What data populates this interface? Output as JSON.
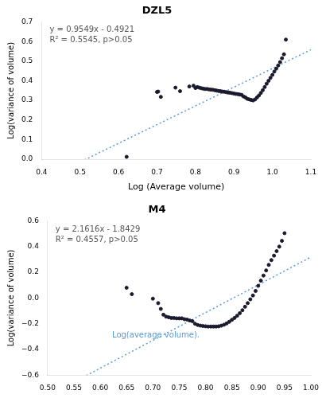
{
  "chart_data": [
    {
      "type": "scatter",
      "title": "DZL5",
      "xlabel": "Log (Average volume)",
      "ylabel": "Log(variance of volume)",
      "xlim": [
        0.4,
        1.1
      ],
      "ylim": [
        0.0,
        0.7
      ],
      "xticks": [
        0.4,
        0.5,
        0.6,
        0.7,
        0.8,
        0.9,
        {
          "value": 1.0,
          "label": "1.0"
        },
        1.1
      ],
      "yticks": [
        {
          "value": 0.0,
          "label": "0.0"
        },
        0.1,
        0.2,
        0.3,
        0.4,
        0.5,
        0.6,
        0.7
      ],
      "grid": false,
      "series": [
        {
          "type": "scatter",
          "marker": "circle",
          "color": "#1a1a2e",
          "x": [
            0.621,
            0.7,
            0.703,
            0.71,
            0.748,
            0.76,
            0.784,
            0.795,
            0.8,
            0.805,
            0.81,
            0.815,
            0.82,
            0.825,
            0.83,
            0.835,
            0.84,
            0.845,
            0.85,
            0.855,
            0.86,
            0.865,
            0.87,
            0.875,
            0.88,
            0.885,
            0.89,
            0.895,
            0.9,
            0.905,
            0.91,
            0.915,
            0.92,
            0.925,
            0.93,
            0.935,
            0.94,
            0.945,
            0.95,
            0.955,
            0.96,
            0.965,
            0.97,
            0.975,
            0.98,
            0.985,
            0.99,
            0.995,
            1.0,
            1.005,
            1.01,
            1.015,
            1.02,
            1.025,
            1.03,
            1.035
          ],
          "values": [
            0.012,
            0.343,
            0.345,
            0.318,
            0.365,
            0.347,
            0.371,
            0.375,
            0.363,
            0.368,
            0.365,
            0.362,
            0.36,
            0.358,
            0.358,
            0.356,
            0.355,
            0.354,
            0.352,
            0.35,
            0.348,
            0.347,
            0.345,
            0.344,
            0.342,
            0.34,
            0.339,
            0.337,
            0.335,
            0.333,
            0.332,
            0.33,
            0.328,
            0.32,
            0.315,
            0.308,
            0.305,
            0.302,
            0.3,
            0.305,
            0.315,
            0.325,
            0.338,
            0.352,
            0.368,
            0.385,
            0.4,
            0.415,
            0.43,
            0.447,
            0.462,
            0.478,
            0.495,
            0.515,
            0.535,
            0.61
          ]
        },
        {
          "type": "line",
          "line_style": "dotted",
          "color": "#5b9bd5",
          "slope": 0.9549,
          "intercept": -0.4921
        }
      ],
      "annotations": [
        {
          "text": [
            "y = 0.9549x - 0.4921",
            "R² = 0.5545, p>0.05"
          ],
          "color": "#555555"
        }
      ]
    },
    {
      "type": "scatter",
      "title": "M4",
      "ylabel": "Log(variance of volume)",
      "xlim": [
        0.5,
        1.0
      ],
      "ylim": [
        -0.6,
        0.6
      ],
      "xticks": [
        {
          "value": 0.5,
          "label": "0.50"
        },
        0.55,
        {
          "value": 0.6,
          "label": "0.60"
        },
        0.65,
        {
          "value": 0.7,
          "label": "0.70"
        },
        0.75,
        {
          "value": 0.8,
          "label": "0.80"
        },
        0.85,
        {
          "value": 0.9,
          "label": "0.90"
        },
        0.95,
        {
          "value": 1.0,
          "label": "1.00"
        }
      ],
      "yticks": [
        {
          "value": -0.6,
          "label": "−0.6"
        },
        {
          "value": -0.4,
          "label": "−0.4"
        },
        {
          "value": -0.2,
          "label": "−0.2"
        },
        {
          "value": 0.0,
          "label": "0.0"
        },
        0.2,
        0.4,
        0.6
      ],
      "grid": false,
      "series": [
        {
          "type": "scatter",
          "marker": "circle",
          "color": "#1a1a2e",
          "x": [
            0.65,
            0.66,
            0.7,
            0.71,
            0.715,
            0.72,
            0.725,
            0.73,
            0.735,
            0.74,
            0.745,
            0.75,
            0.755,
            0.76,
            0.765,
            0.77,
            0.775,
            0.78,
            0.785,
            0.79,
            0.795,
            0.8,
            0.805,
            0.81,
            0.815,
            0.82,
            0.825,
            0.83,
            0.835,
            0.84,
            0.845,
            0.85,
            0.855,
            0.86,
            0.865,
            0.87,
            0.875,
            0.88,
            0.885,
            0.89,
            0.895,
            0.9,
            0.905,
            0.91,
            0.915,
            0.92,
            0.925,
            0.93,
            0.935,
            0.94,
            0.945,
            0.95
          ],
          "values": [
            0.08,
            0.03,
            -0.005,
            -0.04,
            -0.085,
            -0.13,
            -0.145,
            -0.15,
            -0.155,
            -0.155,
            -0.158,
            -0.158,
            -0.158,
            -0.165,
            -0.168,
            -0.175,
            -0.18,
            -0.2,
            -0.21,
            -0.215,
            -0.218,
            -0.22,
            -0.222,
            -0.222,
            -0.222,
            -0.222,
            -0.22,
            -0.215,
            -0.208,
            -0.198,
            -0.185,
            -0.17,
            -0.155,
            -0.138,
            -0.118,
            -0.095,
            -0.068,
            -0.04,
            -0.01,
            0.02,
            0.055,
            0.095,
            0.135,
            0.175,
            0.215,
            0.258,
            0.295,
            0.33,
            0.365,
            0.4,
            0.445,
            0.505
          ]
        },
        {
          "type": "line",
          "line_style": "dotted",
          "color": "#5b9bd5",
          "slope": 2.1616,
          "intercept": -1.8429
        }
      ],
      "annotations": [
        {
          "text": [
            "y = 2.1616x - 1.8429",
            "R² = 0.4557, p>0.05"
          ],
          "color": "#555555"
        },
        {
          "text": [
            "Log(average volume)."
          ],
          "color": "#5b9bd5"
        }
      ]
    }
  ]
}
